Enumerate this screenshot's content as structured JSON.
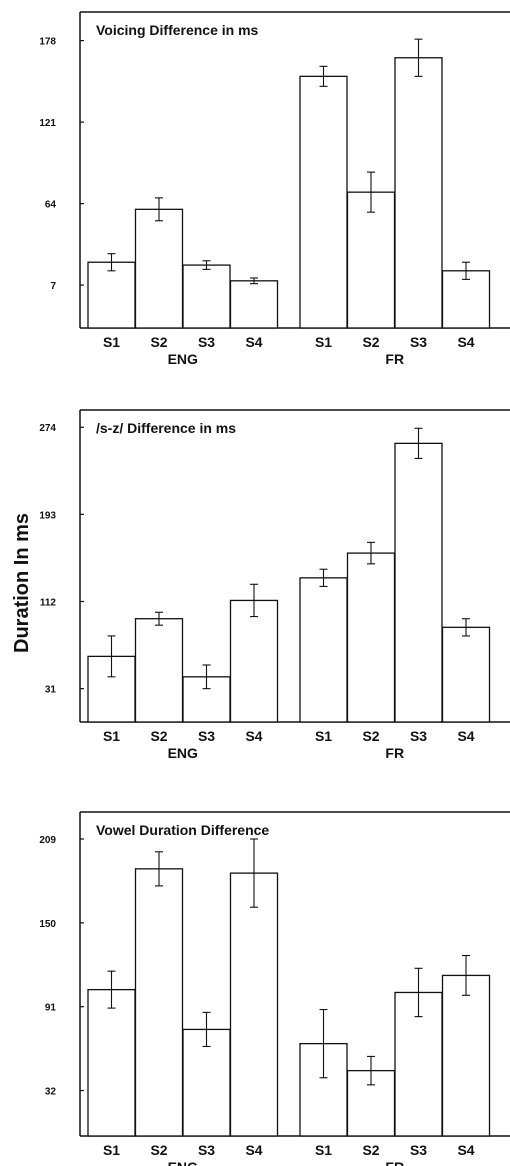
{
  "figure": {
    "ylabel": "Duration In ms"
  },
  "chart_data": [
    {
      "type": "bar",
      "title": "Voicing Difference in ms",
      "groups": [
        "ENG",
        "FR"
      ],
      "categories": [
        "S1",
        "S2",
        "S3",
        "S4",
        "S1",
        "S2",
        "S3",
        "S4"
      ],
      "yticks": [
        7,
        64,
        121,
        178
      ],
      "ylim": [
        -23,
        198
      ],
      "values": [
        23,
        60,
        21,
        10,
        153,
        72,
        166,
        17
      ],
      "errors": [
        6,
        8,
        3,
        2,
        7,
        14,
        13,
        6
      ],
      "grid": false
    },
    {
      "type": "bar",
      "title": "/s-z/ Difference in ms",
      "groups": [
        "ENG",
        "FR"
      ],
      "categories": [
        "S1",
        "S2",
        "S3",
        "S4",
        "S1",
        "S2",
        "S3",
        "S4"
      ],
      "yticks": [
        31,
        112,
        193,
        274
      ],
      "ylim": [
        0,
        290
      ],
      "values": [
        61,
        96,
        42,
        113,
        134,
        157,
        259,
        88
      ],
      "errors": [
        19,
        6,
        11,
        15,
        8,
        10,
        14,
        8
      ],
      "grid": false
    },
    {
      "type": "bar",
      "title": "Vowel Duration Difference",
      "groups": [
        "ENG",
        "FR"
      ],
      "categories": [
        "S1",
        "S2",
        "S3",
        "S4",
        "S1",
        "S2",
        "S3",
        "S4"
      ],
      "yticks": [
        32,
        91,
        150,
        209
      ],
      "ylim": [
        0,
        228
      ],
      "values": [
        103,
        188,
        75,
        185,
        65,
        46,
        101,
        113
      ],
      "errors": [
        13,
        12,
        12,
        24,
        24,
        10,
        17,
        14
      ],
      "grid": false
    }
  ]
}
